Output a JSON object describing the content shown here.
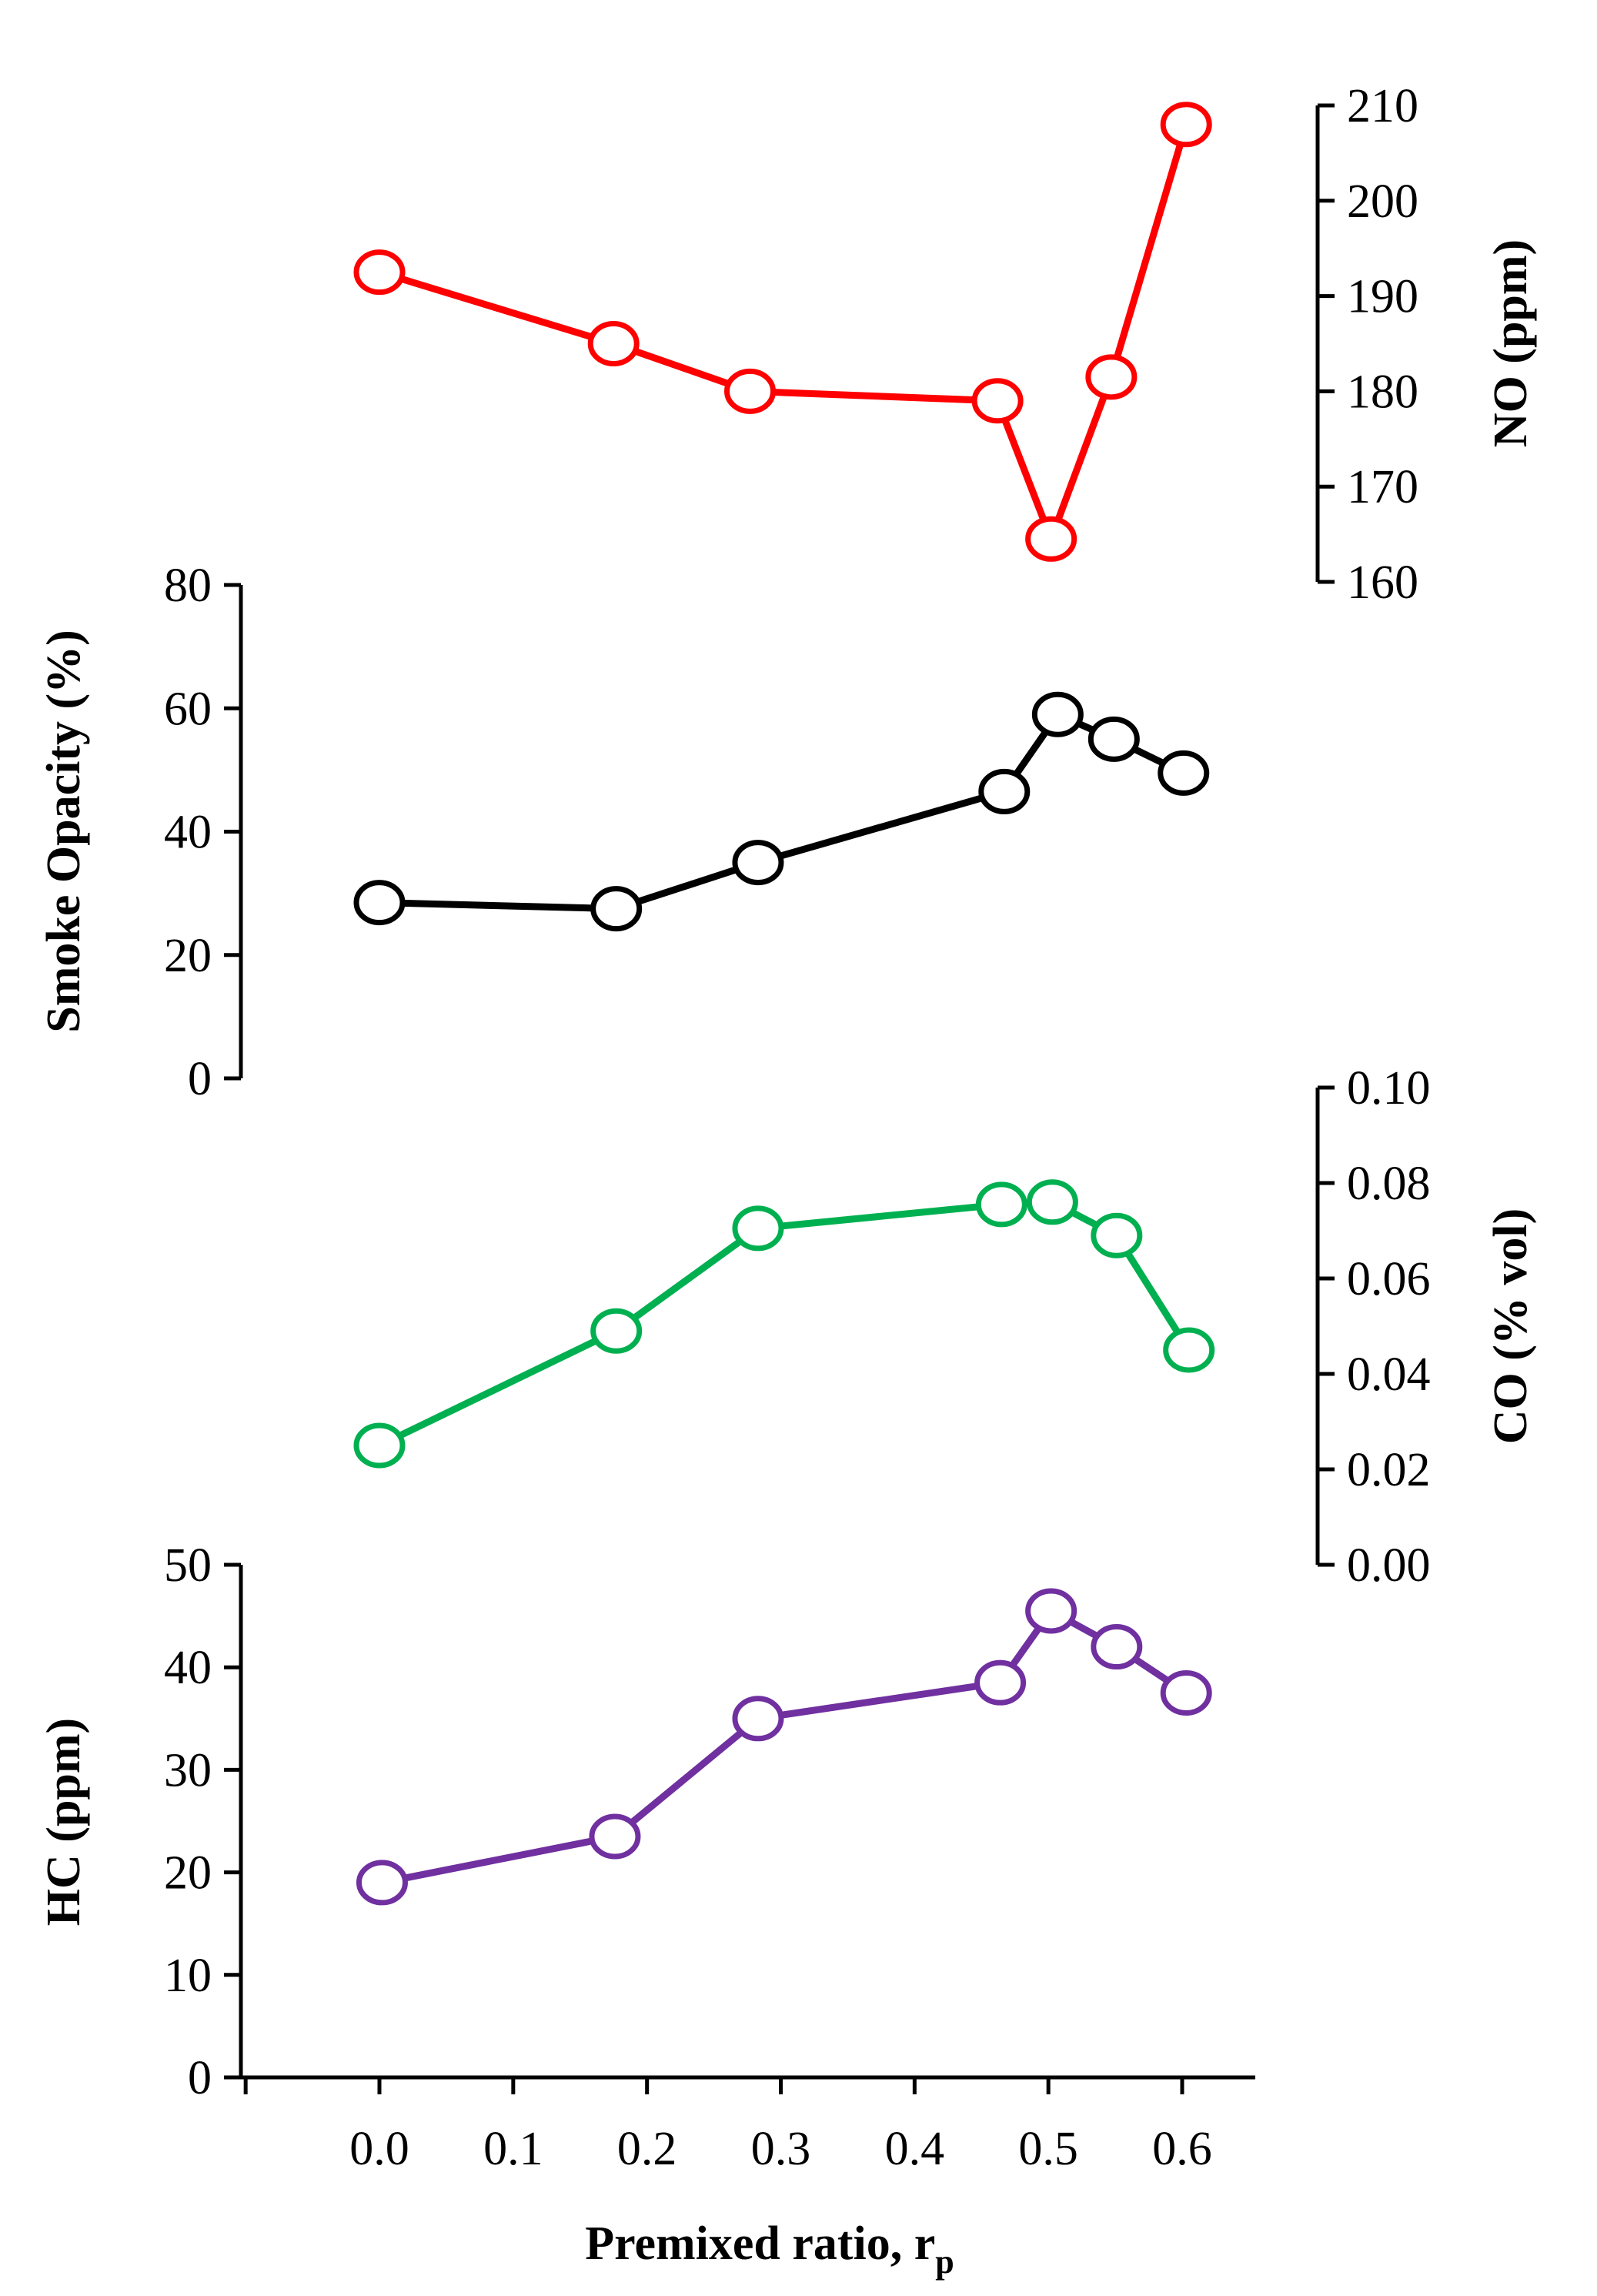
{
  "chart_data": [
    {
      "id": "no",
      "type": "line",
      "ylabel": "NO (ppm)",
      "axis_side": "right",
      "color": "#ff0000",
      "ylim": [
        160,
        210
      ],
      "yticks": [
        "160",
        "170",
        "180",
        "190",
        "200",
        "210"
      ],
      "yticks_values": [
        160,
        170,
        180,
        190,
        200,
        210
      ],
      "series": [
        {
          "name": "NO",
          "x": [
            0.0,
            0.175,
            0.277,
            0.462,
            0.502,
            0.547,
            0.603
          ],
          "values": [
            192.5,
            185.0,
            180.0,
            179.0,
            164.5,
            181.5,
            208.0
          ]
        }
      ]
    },
    {
      "id": "smoke",
      "type": "line",
      "ylabel": "Smoke Opacity (%)",
      "axis_side": "left",
      "color": "#000000",
      "ylim": [
        0,
        80
      ],
      "yticks": [
        "0",
        "20",
        "40",
        "60",
        "80"
      ],
      "yticks_values": [
        0,
        20,
        40,
        60,
        80
      ],
      "series": [
        {
          "name": "Smoke Opacity",
          "x": [
            0.0,
            0.177,
            0.283,
            0.467,
            0.507,
            0.549,
            0.601
          ],
          "values": [
            28.5,
            27.5,
            35.0,
            46.5,
            59.0,
            55.0,
            49.5
          ]
        }
      ]
    },
    {
      "id": "co",
      "type": "line",
      "ylabel": "CO (% vol)",
      "axis_side": "right",
      "color": "#00b050",
      "ylim": [
        0.0,
        0.1
      ],
      "yticks": [
        "0.00",
        "0.02",
        "0.04",
        "0.06",
        "0.08",
        "0.10"
      ],
      "yticks_values": [
        0.0,
        0.02,
        0.04,
        0.06,
        0.08,
        0.1
      ],
      "series": [
        {
          "name": "CO",
          "x": [
            0.0,
            0.177,
            0.283,
            0.465,
            0.503,
            0.551,
            0.605
          ],
          "values": [
            0.025,
            0.049,
            0.0705,
            0.0755,
            0.076,
            0.069,
            0.045
          ]
        }
      ]
    },
    {
      "id": "hc",
      "type": "line",
      "ylabel": "HC (ppm)",
      "axis_side": "left",
      "color": "#7030a0",
      "ylim": [
        0,
        50
      ],
      "yticks": [
        "0",
        "10",
        "20",
        "30",
        "40",
        "50"
      ],
      "yticks_values": [
        0,
        10,
        20,
        30,
        40,
        50
      ],
      "xlabel": "Premixed ratio, r",
      "xlabel_sub": "p",
      "xticks": [
        "0.0",
        "0.1",
        "0.2",
        "0.3",
        "0.4",
        "0.5",
        "0.6"
      ],
      "xticks_values": [
        0.0,
        0.1,
        0.2,
        0.3,
        0.4,
        0.5,
        0.6
      ],
      "xlim": [
        -0.1,
        0.66
      ],
      "series": [
        {
          "name": "HC",
          "x": [
            0.002,
            0.176,
            0.283,
            0.464,
            0.502,
            0.551,
            0.603
          ],
          "values": [
            19.0,
            23.5,
            35.0,
            38.5,
            45.5,
            42.0,
            37.5
          ]
        }
      ]
    }
  ]
}
